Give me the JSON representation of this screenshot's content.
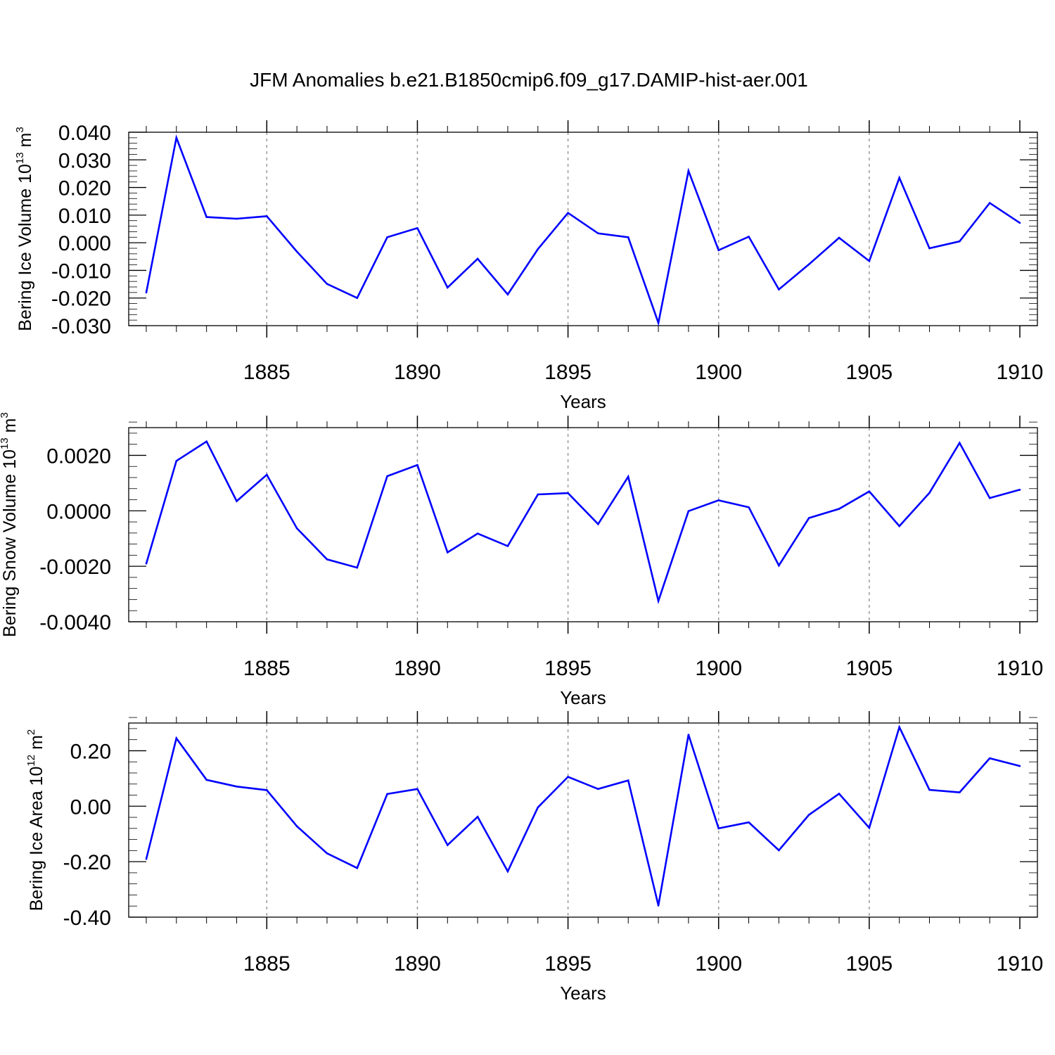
{
  "figure": {
    "title": "JFM Anomalies b.e21.B1850cmip6.f09_g17.DAMIP-hist-aer.001"
  },
  "chart_data": [
    {
      "type": "line",
      "ylabel": {
        "text": "Bering Ice Volume 10",
        "superscript": "13",
        "unit": " m",
        "unit_sup": "3"
      },
      "xlabel": "Years",
      "xlim": [
        1881,
        1910
      ],
      "ylim": [
        -0.03,
        0.04
      ],
      "xticks": [
        1885,
        1890,
        1895,
        1900,
        1905,
        1910
      ],
      "yticks": [
        -0.03,
        -0.02,
        -0.01,
        0.0,
        0.01,
        0.02,
        0.03,
        0.04
      ],
      "ytick_labels": [
        "-0.030",
        "-0.020",
        "-0.010",
        "0.000",
        "0.010",
        "0.020",
        "0.030",
        "0.040"
      ],
      "grid": "dashed vertical at major x ticks",
      "line_color": "#0000ff",
      "x": [
        1881,
        1882,
        1883,
        1884,
        1885,
        1886,
        1887,
        1888,
        1889,
        1890,
        1891,
        1892,
        1893,
        1894,
        1895,
        1896,
        1897,
        1898,
        1899,
        1900,
        1901,
        1902,
        1903,
        1904,
        1905,
        1906,
        1907,
        1908,
        1909,
        1910
      ],
      "values": [
        -0.018,
        0.038,
        0.0093,
        0.0087,
        0.0096,
        -0.0032,
        -0.0149,
        -0.02,
        0.002,
        0.0053,
        -0.0162,
        -0.0058,
        -0.0187,
        -0.0023,
        0.0108,
        0.0034,
        0.002,
        -0.029,
        0.026,
        -0.0027,
        0.0022,
        -0.0169,
        -0.0078,
        0.0018,
        -0.0066,
        0.0235,
        -0.002,
        0.0005,
        0.0144,
        0.0072
      ]
    },
    {
      "type": "line",
      "ylabel": {
        "text": "Bering Snow Volume 10",
        "superscript": "13",
        "unit": " m",
        "unit_sup": "3"
      },
      "xlabel": "Years",
      "xlim": [
        1881,
        1910
      ],
      "ylim": [
        -0.004,
        0.003
      ],
      "xticks": [
        1885,
        1890,
        1895,
        1900,
        1905,
        1910
      ],
      "yticks": [
        -0.004,
        -0.002,
        0.0,
        0.002
      ],
      "ytick_labels": [
        "-0.0040",
        "-0.0020",
        "0.0000",
        "0.0020"
      ],
      "grid": "dashed vertical at major x ticks",
      "line_color": "#0000ff",
      "x": [
        1881,
        1882,
        1883,
        1884,
        1885,
        1886,
        1887,
        1888,
        1889,
        1890,
        1891,
        1892,
        1893,
        1894,
        1895,
        1896,
        1897,
        1898,
        1899,
        1900,
        1901,
        1902,
        1903,
        1904,
        1905,
        1906,
        1907,
        1908,
        1909,
        1910
      ],
      "values": [
        -0.0019,
        0.0018,
        0.0025,
        0.00035,
        0.0013,
        -0.00063,
        -0.00175,
        -0.00205,
        0.00125,
        0.00165,
        -0.0015,
        -0.00082,
        -0.00127,
        0.00059,
        0.00064,
        -0.00048,
        0.00123,
        -0.00325,
        -1e-05,
        0.00038,
        0.00013,
        -0.00197,
        -0.00026,
        7e-05,
        0.0007,
        -0.00055,
        0.00065,
        0.00245,
        0.00046,
        0.00076
      ]
    },
    {
      "type": "line",
      "ylabel": {
        "text": "Bering Ice Area 10",
        "superscript": "12",
        "unit": " m",
        "unit_sup": "2"
      },
      "xlabel": "Years",
      "xlim": [
        1881,
        1910
      ],
      "ylim": [
        -0.4,
        0.3
      ],
      "xticks": [
        1885,
        1890,
        1895,
        1900,
        1905,
        1910
      ],
      "yticks": [
        -0.4,
        -0.2,
        0.0,
        0.2
      ],
      "ytick_labels": [
        "-0.40",
        "-0.20",
        "0.00",
        "0.20"
      ],
      "grid": "dashed vertical at major x ticks",
      "line_color": "#0000ff",
      "x": [
        1881,
        1882,
        1883,
        1884,
        1885,
        1886,
        1887,
        1888,
        1889,
        1890,
        1891,
        1892,
        1893,
        1894,
        1895,
        1896,
        1897,
        1898,
        1899,
        1900,
        1901,
        1902,
        1903,
        1904,
        1905,
        1906,
        1907,
        1908,
        1909,
        1910
      ],
      "values": [
        -0.19,
        0.245,
        0.095,
        0.071,
        0.058,
        -0.072,
        -0.17,
        -0.223,
        0.044,
        0.062,
        -0.14,
        -0.038,
        -0.235,
        -0.004,
        0.106,
        0.062,
        0.093,
        -0.358,
        0.258,
        -0.08,
        -0.058,
        -0.159,
        -0.031,
        0.045,
        -0.078,
        0.285,
        0.059,
        0.05,
        0.173,
        0.145
      ]
    }
  ]
}
